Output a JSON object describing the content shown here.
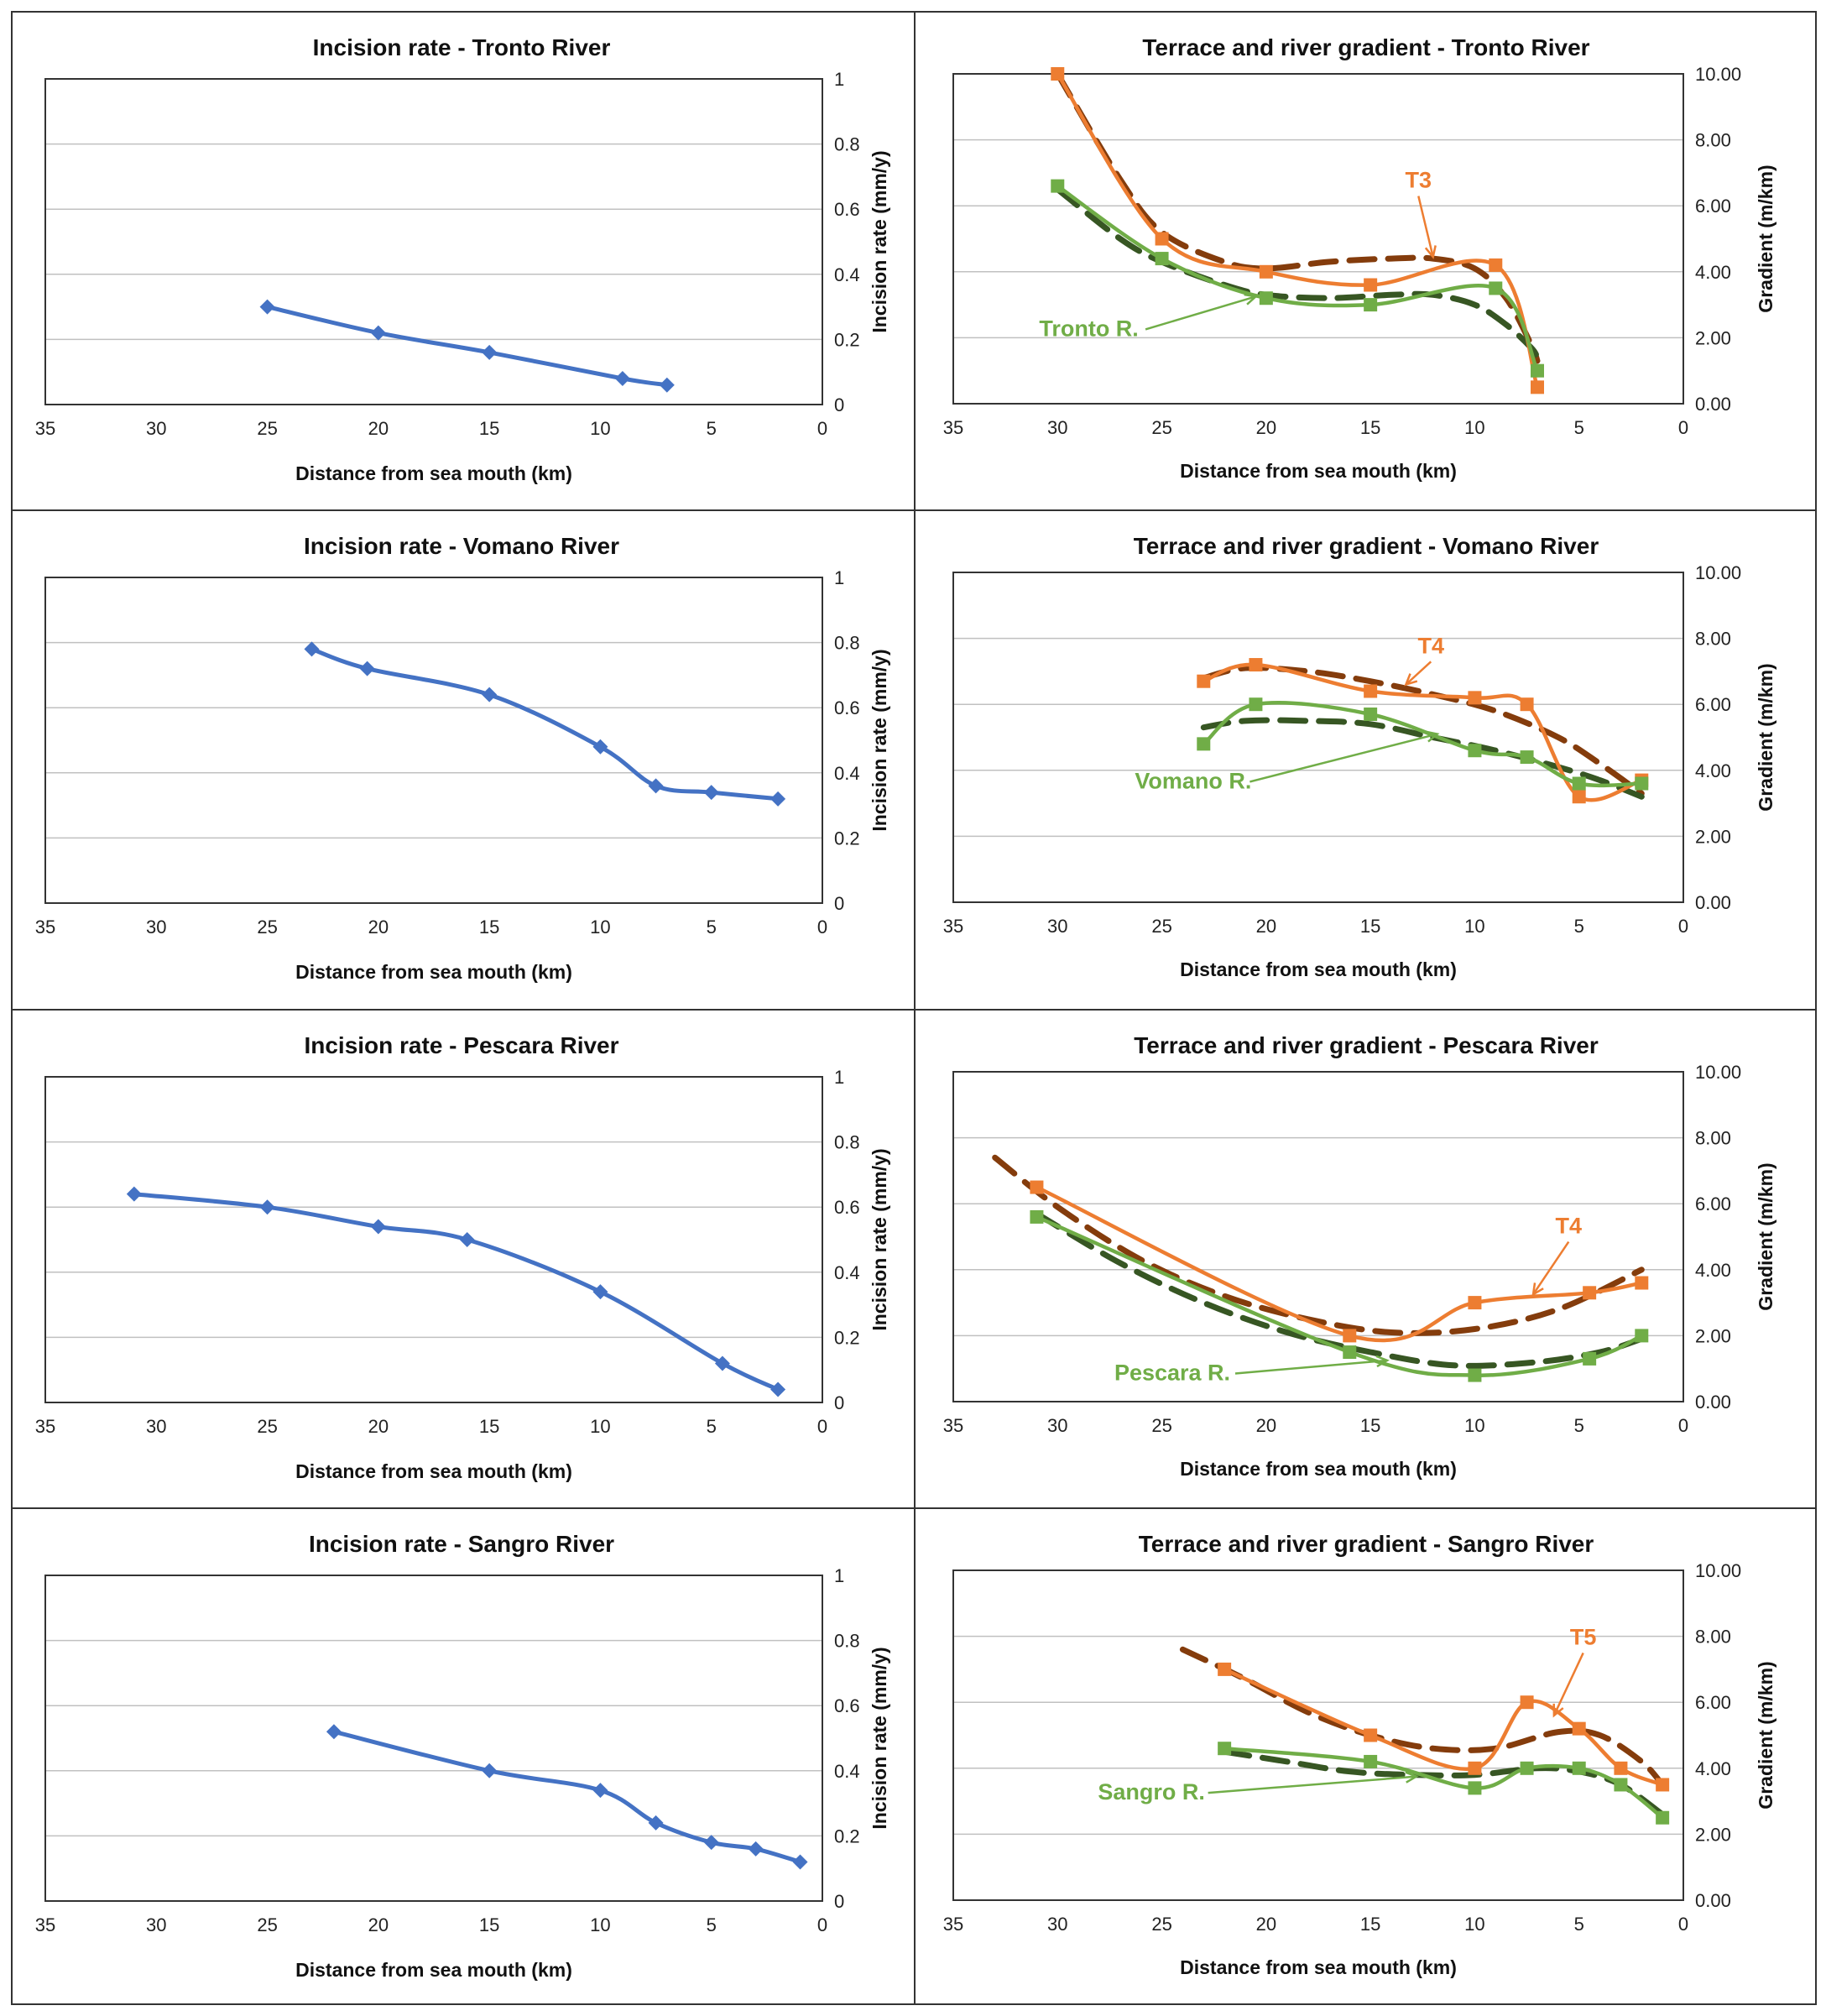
{
  "colors": {
    "incision": "#4472C4",
    "terrace": "#ED7D31",
    "river": "#70AD47",
    "terrace_trend": "#843C0C",
    "river_trend": "#375623",
    "grid": "#c0c0c0"
  },
  "chart_data": [
    {
      "type": "line",
      "title": "Incision rate - Tronto River",
      "xlabel": "Distance from sea mouth (km)",
      "ylabel": "Incision rate (mm/y)",
      "xlim": [
        35,
        0
      ],
      "ylim": [
        0,
        1
      ],
      "xticks": [
        "35",
        "30",
        "25",
        "20",
        "15",
        "10",
        "5",
        "0"
      ],
      "yticks": [
        "0",
        "0.2",
        "0.4",
        "0.6",
        "0.8",
        "1"
      ],
      "series": [
        {
          "name": "Incision rate",
          "x": [
            25,
            20,
            15,
            9,
            7
          ],
          "y": [
            0.3,
            0.22,
            0.16,
            0.08,
            0.06
          ]
        }
      ]
    },
    {
      "type": "line",
      "title": "Terrace and river gradient - Tronto River",
      "xlabel": "Distance from sea mouth (km)",
      "ylabel": "Gradient (m/km)",
      "xlim": [
        35,
        0
      ],
      "ylim": [
        0,
        10
      ],
      "xticks": [
        "35",
        "30",
        "25",
        "20",
        "15",
        "10",
        "5",
        "0"
      ],
      "yticks": [
        "0.00",
        "2.00",
        "4.00",
        "6.00",
        "8.00",
        "10.00"
      ],
      "series": [
        {
          "name": "T3",
          "x": [
            30,
            25,
            20,
            15,
            9,
            7
          ],
          "y": [
            10.0,
            5.0,
            4.0,
            3.6,
            4.2,
            0.5
          ]
        },
        {
          "name": "Tronto R.",
          "x": [
            30,
            25,
            20,
            15,
            9,
            7
          ],
          "y": [
            6.6,
            4.4,
            3.2,
            3.0,
            3.5,
            1.0
          ]
        }
      ],
      "trendlines": [
        {
          "name": "T3 trend",
          "x": [
            30,
            27,
            25,
            22,
            20,
            17,
            14,
            12,
            10,
            8.5,
            7.3,
            7
          ],
          "y": [
            10.0,
            6.8,
            5.2,
            4.3,
            4.1,
            4.3,
            4.4,
            4.4,
            4.1,
            3.2,
            1.8,
            1.3
          ]
        },
        {
          "name": "Tronto R. trend",
          "x": [
            30,
            27,
            25,
            22,
            20,
            17,
            14,
            12,
            10,
            8.5,
            7.3,
            7
          ],
          "y": [
            6.5,
            5.0,
            4.3,
            3.6,
            3.3,
            3.2,
            3.3,
            3.3,
            3.0,
            2.4,
            1.7,
            1.4
          ]
        }
      ],
      "annotations": [
        {
          "text": "T3",
          "series": "T3"
        },
        {
          "text": "Tronto R.",
          "series": "Tronto R."
        }
      ]
    },
    {
      "type": "line",
      "title": "Incision rate - Vomano River",
      "xlabel": "Distance from sea mouth (km)",
      "ylabel": "Incision rate (mm/y)",
      "xlim": [
        35,
        0
      ],
      "ylim": [
        0,
        1
      ],
      "xticks": [
        "35",
        "30",
        "25",
        "20",
        "15",
        "10",
        "5",
        "0"
      ],
      "yticks": [
        "0",
        "0.2",
        "0.4",
        "0.6",
        "0.8",
        "1"
      ],
      "series": [
        {
          "name": "Incision rate",
          "x": [
            23,
            20.5,
            15,
            10,
            7.5,
            5,
            2
          ],
          "y": [
            0.78,
            0.72,
            0.64,
            0.48,
            0.36,
            0.34,
            0.32
          ]
        }
      ]
    },
    {
      "type": "line",
      "title": "Terrace and river gradient - Vomano River",
      "xlabel": "Distance from sea mouth (km)",
      "ylabel": "Gradient (m/km)",
      "xlim": [
        35,
        0
      ],
      "ylim": [
        0,
        10
      ],
      "xticks": [
        "35",
        "30",
        "25",
        "20",
        "15",
        "10",
        "5",
        "0"
      ],
      "yticks": [
        "0.00",
        "2.00",
        "4.00",
        "6.00",
        "8.00",
        "10.00"
      ],
      "series": [
        {
          "name": "T4",
          "x": [
            23,
            20.5,
            15,
            10,
            7.5,
            5,
            2
          ],
          "y": [
            6.7,
            7.2,
            6.4,
            6.2,
            6.0,
            3.2,
            3.7
          ]
        },
        {
          "name": "Vomano R.",
          "x": [
            23,
            20.5,
            15,
            10,
            7.5,
            5,
            2
          ],
          "y": [
            4.8,
            6.0,
            5.7,
            4.6,
            4.4,
            3.6,
            3.6
          ]
        }
      ],
      "trendlines": [
        {
          "name": "T4 trend",
          "x": [
            23,
            21,
            18,
            15,
            12,
            9,
            6,
            4,
            2
          ],
          "y": [
            6.8,
            7.1,
            7.0,
            6.7,
            6.3,
            5.8,
            5.0,
            4.2,
            3.3
          ]
        },
        {
          "name": "Vomano R. trend",
          "x": [
            23,
            21,
            18,
            15,
            12,
            9,
            6,
            4,
            2
          ],
          "y": [
            5.3,
            5.5,
            5.5,
            5.4,
            5.0,
            4.6,
            4.1,
            3.7,
            3.2
          ]
        }
      ],
      "annotations": [
        {
          "text": "T4",
          "series": "T4"
        },
        {
          "text": "Vomano R.",
          "series": "Vomano R."
        }
      ]
    },
    {
      "type": "line",
      "title": "Incision rate - Pescara River",
      "xlabel": "Distance from sea mouth (km)",
      "ylabel": "Incision rate (mm/y)",
      "xlim": [
        35,
        0
      ],
      "ylim": [
        0,
        1
      ],
      "xticks": [
        "35",
        "30",
        "25",
        "20",
        "15",
        "10",
        "5",
        "0"
      ],
      "yticks": [
        "0",
        "0.2",
        "0.4",
        "0.6",
        "0.8",
        "1"
      ],
      "series": [
        {
          "name": "Incision rate",
          "x": [
            31,
            25,
            20,
            16,
            10,
            4.5,
            2
          ],
          "y": [
            0.64,
            0.6,
            0.54,
            0.5,
            0.34,
            0.12,
            0.04
          ]
        }
      ]
    },
    {
      "type": "line",
      "title": "Terrace and river gradient - Pescara River",
      "xlabel": "Distance from sea mouth (km)",
      "ylabel": "Gradient (m/km)",
      "xlim": [
        35,
        0
      ],
      "ylim": [
        0,
        10
      ],
      "xticks": [
        "35",
        "30",
        "25",
        "20",
        "15",
        "10",
        "5",
        "0"
      ],
      "yticks": [
        "0.00",
        "2.00",
        "4.00",
        "6.00",
        "8.00",
        "10.00"
      ],
      "series": [
        {
          "name": "T4",
          "x": [
            31,
            16,
            10,
            4.5,
            2
          ],
          "y": [
            6.5,
            2.0,
            3.0,
            3.3,
            3.6
          ]
        },
        {
          "name": "Pescara R.",
          "x": [
            31,
            16,
            10,
            4.5,
            2
          ],
          "y": [
            5.6,
            1.5,
            0.8,
            1.3,
            2.0
          ]
        }
      ],
      "trendlines": [
        {
          "name": "T4 trend",
          "x": [
            33,
            30,
            26,
            22,
            18,
            14,
            10,
            6,
            2
          ],
          "y": [
            7.4,
            5.9,
            4.3,
            3.2,
            2.5,
            2.1,
            2.2,
            2.8,
            4.0
          ]
        },
        {
          "name": "Pescara R. trend",
          "x": [
            31,
            27,
            23,
            19,
            15,
            11,
            7,
            4,
            2
          ],
          "y": [
            5.7,
            4.2,
            3.0,
            2.1,
            1.5,
            1.1,
            1.2,
            1.5,
            1.9
          ]
        }
      ],
      "annotations": [
        {
          "text": "T4",
          "series": "T4"
        },
        {
          "text": "Pescara R.",
          "series": "Pescara R."
        }
      ]
    },
    {
      "type": "line",
      "title": "Incision rate - Sangro River",
      "xlabel": "Distance from sea mouth (km)",
      "ylabel": "Incision rate (mm/y)",
      "xlim": [
        35,
        0
      ],
      "ylim": [
        0,
        1
      ],
      "xticks": [
        "35",
        "30",
        "25",
        "20",
        "15",
        "10",
        "5",
        "0"
      ],
      "yticks": [
        "0",
        "0.2",
        "0.4",
        "0.6",
        "0.8",
        "1"
      ],
      "series": [
        {
          "name": "Incision rate",
          "x": [
            22,
            15,
            10,
            7.5,
            5,
            3,
            1
          ],
          "y": [
            0.52,
            0.4,
            0.34,
            0.24,
            0.18,
            0.16,
            0.12
          ]
        }
      ]
    },
    {
      "type": "line",
      "title": "Terrace and river gradient - Sangro River",
      "xlabel": "Distance from sea mouth (km)",
      "ylabel": "Gradient (m/km)",
      "xlim": [
        35,
        0
      ],
      "ylim": [
        0,
        10
      ],
      "xticks": [
        "35",
        "30",
        "25",
        "20",
        "15",
        "10",
        "5",
        "0"
      ],
      "yticks": [
        "0.00",
        "2.00",
        "4.00",
        "6.00",
        "8.00",
        "10.00"
      ],
      "series": [
        {
          "name": "T5",
          "x": [
            22,
            15,
            10,
            7.5,
            5,
            3,
            1
          ],
          "y": [
            7.0,
            5.0,
            4.0,
            6.0,
            5.2,
            4.0,
            3.5
          ]
        },
        {
          "name": "Sangro R.",
          "x": [
            22,
            15,
            10,
            7.5,
            5,
            3,
            1
          ],
          "y": [
            4.6,
            4.2,
            3.4,
            4.0,
            4.0,
            3.5,
            2.5
          ]
        }
      ],
      "trendlines": [
        {
          "name": "T5 trend",
          "x": [
            24,
            21,
            18,
            15,
            12,
            9,
            6,
            4,
            2,
            1
          ],
          "y": [
            7.6,
            6.7,
            5.7,
            5.0,
            4.6,
            4.6,
            5.1,
            5.0,
            4.2,
            3.5
          ]
        },
        {
          "name": "Sangro R. trend",
          "x": [
            22,
            19,
            16,
            13,
            10,
            7,
            5,
            3,
            1
          ],
          "y": [
            4.5,
            4.2,
            3.9,
            3.8,
            3.8,
            4.0,
            3.9,
            3.5,
            2.6
          ]
        }
      ],
      "annotations": [
        {
          "text": "T5",
          "series": "T5"
        },
        {
          "text": "Sangro R.",
          "series": "Sangro R."
        }
      ]
    }
  ]
}
